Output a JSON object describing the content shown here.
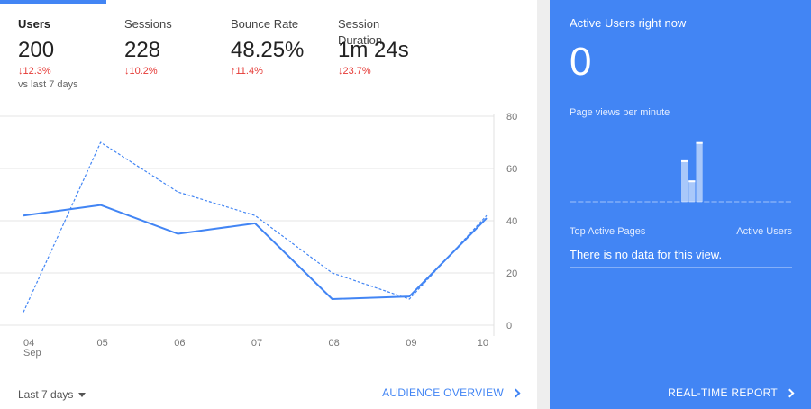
{
  "metrics": [
    {
      "label": "Users",
      "value": "200",
      "change": "↓12.3%",
      "sub": "vs last 7 days"
    },
    {
      "label": "Sessions",
      "value": "228",
      "change": "↓10.2%"
    },
    {
      "label": "Bounce Rate",
      "value": "48.25%",
      "change": "↑11.4%"
    },
    {
      "label": "Session Duration",
      "value": "1m 24s",
      "change": "↓23.7%"
    }
  ],
  "chart_data": {
    "type": "line",
    "x": [
      "04",
      "05",
      "06",
      "07",
      "08",
      "09",
      "10"
    ],
    "x_sublabel": "Sep",
    "series": [
      {
        "values": [
          42,
          46,
          35,
          39,
          10,
          11,
          41
        ],
        "style": "solid",
        "color": "#4285f4"
      },
      {
        "values": [
          5,
          70,
          51,
          42,
          20,
          10,
          42
        ],
        "style": "dashed",
        "color": "#4285f4"
      }
    ],
    "y_ticks": [
      "80",
      "60",
      "40",
      "20",
      "0"
    ],
    "ylim": [
      0,
      80
    ],
    "grid": true
  },
  "footer": {
    "range_label": "Last 7 days",
    "audience_link": "AUDIENCE OVERVIEW"
  },
  "realtime": {
    "title": "Active Users right now",
    "count": "0",
    "pageviews_label": "Page views per minute",
    "pageviews_bars": [
      {
        "minute": 15,
        "value": 0.64
      },
      {
        "minute": 16,
        "value": 0.33
      },
      {
        "minute": 17,
        "value": 0.92
      }
    ],
    "top_pages_label": "Top Active Pages",
    "active_users_label": "Active Users",
    "no_data": "There is no data for this view.",
    "report_link": "REAL-TIME REPORT"
  },
  "colors": {
    "accent": "#4285f4",
    "negative": "#e53935"
  }
}
